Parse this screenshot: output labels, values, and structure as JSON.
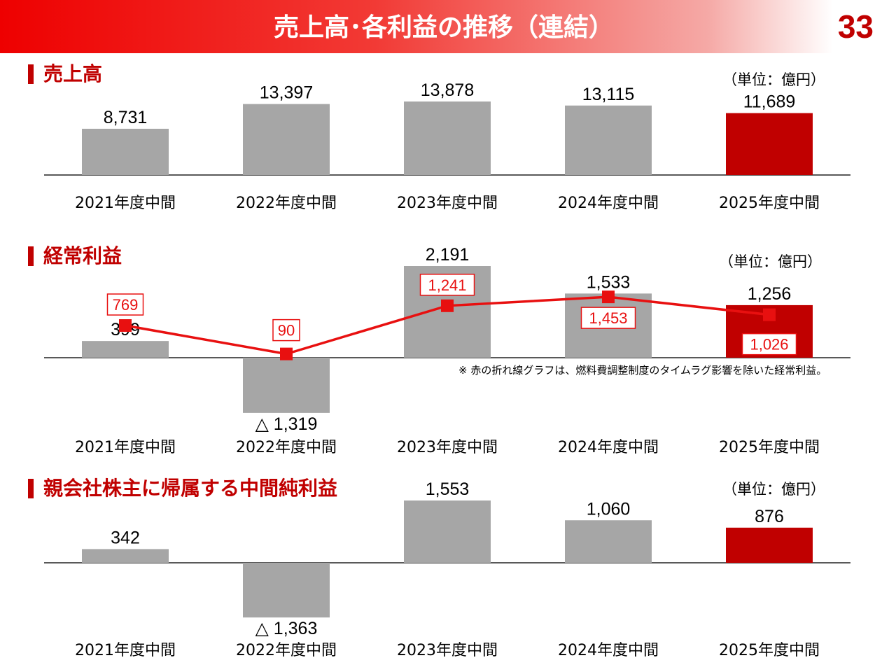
{
  "header": {
    "title": "売上高･各利益の推移（連結）",
    "page_number": "33"
  },
  "colors": {
    "header_red": "#ee0000",
    "accent": "#c00000",
    "bar_gray": "#a6a6a6",
    "highlight_bar": "#c00000",
    "line_red": "#e81010"
  },
  "footnote": "※ 赤の折れ線グラフは、燃料費調整制度のタイムラグ影響を除いた経常利益。",
  "chart_data": [
    {
      "type": "bar",
      "title": "売上高",
      "unit": "（単位：億円）",
      "categories": [
        "2021年度中間",
        "2022年度中間",
        "2023年度中間",
        "2024年度中間",
        "2025年度中間"
      ],
      "values": [
        8731,
        13397,
        13878,
        13115,
        11689
      ],
      "value_labels": [
        "8,731",
        "13,397",
        "13,878",
        "13,115",
        "11,689"
      ],
      "highlight_index": 4
    },
    {
      "type": "bar",
      "title": "経常利益",
      "unit": "（単位：億円）",
      "categories": [
        "2021年度中間",
        "2022年度中間",
        "2023年度中間",
        "2024年度中間",
        "2025年度中間"
      ],
      "values": [
        399,
        -1319,
        2191,
        1533,
        1256
      ],
      "value_labels": [
        "399",
        "△ 1,319",
        "2,191",
        "1,533",
        "1,256"
      ],
      "highlight_index": 4,
      "line_series": {
        "values": [
          769,
          90,
          1241,
          1453,
          1026
        ],
        "value_labels": [
          "769",
          "90",
          "1,241",
          "1,453",
          "1,026"
        ]
      }
    },
    {
      "type": "bar",
      "title": "親会社株主に帰属する中間純利益",
      "unit": "（単位：億円）",
      "categories": [
        "2021年度中間",
        "2022年度中間",
        "2023年度中間",
        "2024年度中間",
        "2025年度中間"
      ],
      "values": [
        342,
        -1363,
        1553,
        1060,
        876
      ],
      "value_labels": [
        "342",
        "△ 1,363",
        "1,553",
        "1,060",
        "876"
      ],
      "highlight_index": 4
    }
  ]
}
